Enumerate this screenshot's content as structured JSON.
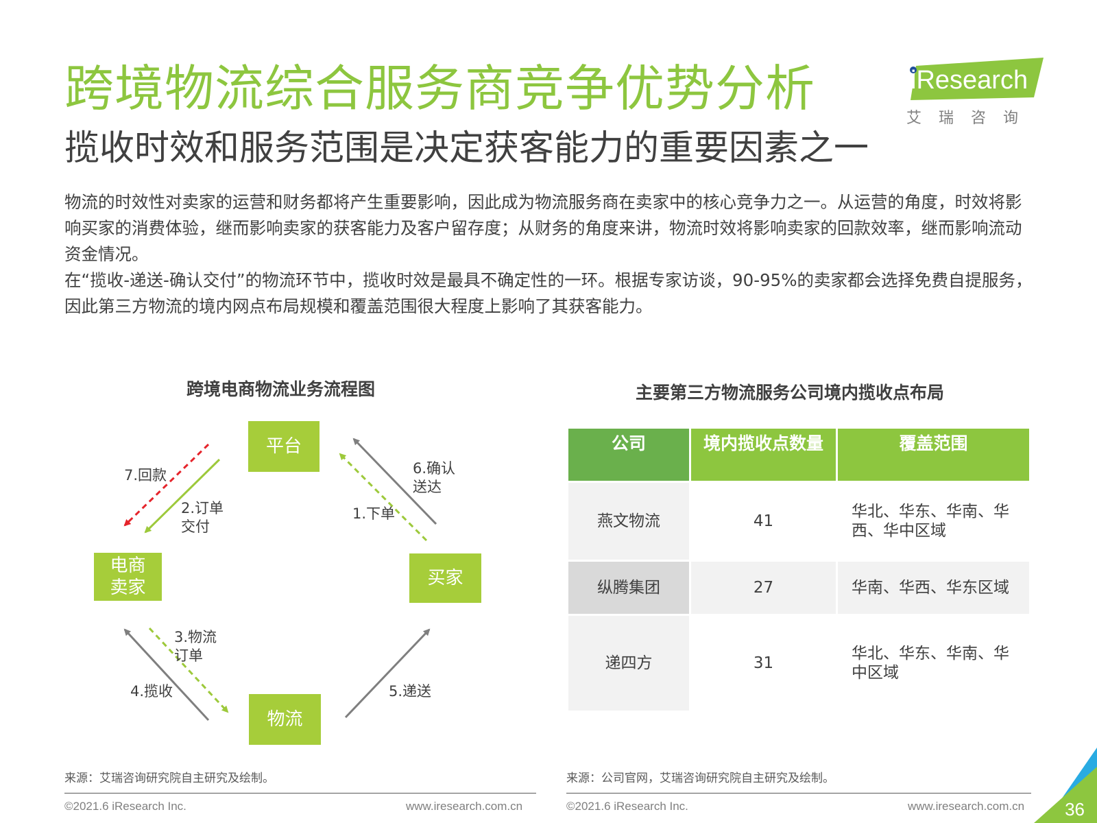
{
  "header": {
    "title": "跨境物流综合服务商竞争优势分析",
    "subtitle": "揽收时效和服务范围是决定获客能力的重要因素之一"
  },
  "logo": {
    "brand": "iResearch",
    "chinese": "艾瑞咨询"
  },
  "body": {
    "paragraph1": "物流的时效性对卖家的运营和财务都将产生重要影响，因此成为物流服务商在卖家中的核心竞争力之一。从运营的角度，时效将影响买家的消费体验，继而影响卖家的获客能力及客户留存度；从财务的角度来讲，物流时效将影响卖家的回款效率，继而影响流动资金情况。",
    "paragraph2": "在“揽收-递送-确认交付”的物流环节中，揽收时效是最具不确定性的一环。根据专家访谈，90-95%的卖家都会选择免费自提服务，因此第三方物流的境内网点布局规模和覆盖范围很大程度上影响了其获客能力。"
  },
  "flow": {
    "title": "跨境电商物流业务流程图",
    "nodes": {
      "platform": "平台",
      "seller_line1": "电商",
      "seller_line2": "卖家",
      "buyer": "买家",
      "logistics": "物流"
    },
    "labels": {
      "payback": "7.回款",
      "order_delivery_line1": "2.订单",
      "order_delivery_line2": "交付",
      "place_order": "1.下单",
      "confirm_line1": "6.确认",
      "confirm_line2": "送达",
      "logistics_order_line1": "3.物流",
      "logistics_order_line2": "订单",
      "pickup": "4.揽收",
      "deliver": "5.递送"
    },
    "colors": {
      "node": "#a6cd3a",
      "green_arrow": "#9dc93b",
      "red_arrow": "#e5242b",
      "gray_arrow": "#7f7f7f"
    }
  },
  "table": {
    "title": "主要第三方物流服务公司境内揽收点布局",
    "headers": [
      "公司",
      "境内揽收点数量",
      "覆盖范围"
    ],
    "rows": [
      {
        "company": "燕文物流",
        "count": "41",
        "coverage": "华北、华东、华南、华西、华中区域"
      },
      {
        "company": "纵腾集团",
        "count": "27",
        "coverage": "华南、华西、华东区域"
      },
      {
        "company": "递四方",
        "count": "31",
        "coverage": "华北、华东、华南、华中区域"
      }
    ]
  },
  "sources": {
    "left": "来源：艾瑞咨询研究院自主研究及绘制。",
    "right": "来源：公司官网，艾瑞咨询研究院自主研究及绘制。"
  },
  "footer": {
    "copyright_left": "©2021.6 iResearch Inc.",
    "url_left": "www.iresearch.com.cn",
    "copyright_right": "©2021.6 iResearch Inc.",
    "url_right": "www.iresearch.com.cn",
    "page_number": "36"
  },
  "colors": {
    "accent_green": "#8dc63f",
    "header_green_dark": "#6ab04c",
    "corner_blue": "#29abe2"
  }
}
